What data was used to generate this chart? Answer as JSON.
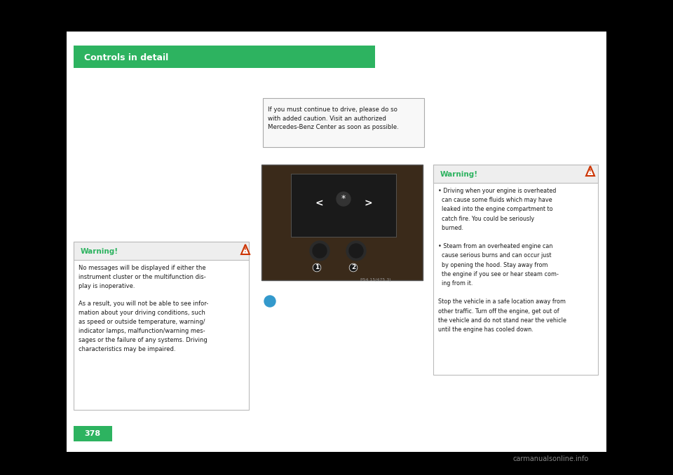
{
  "bg_color": "#000000",
  "page_color": "#ffffff",
  "header_color": "#2db360",
  "header_text": "Controls in detail",
  "header_text_color": "#ffffff",
  "header_font_size": 9,
  "page_number": "378",
  "page_number_bg": "#2db360",
  "page_number_color": "#ffffff",
  "warning_title_color": "#2db360",
  "warning_bg": "#ffffff",
  "warning_border_color": "#cccccc",
  "text_color": "#1a1a1a",
  "small_text_color": "#333333",
  "watermark_color": "#888888",
  "watermark_text": "carmanualsonline.info",
  "info_box_text": "If you must continue to drive, please do so\nwith added caution. Visit an authorized\nMercedes-Benz Center as soon as possible.",
  "warning1_title": "Warning!",
  "warning1_body": "No messages will be displayed if either the\ninstrument cluster or the multifunction dis-\nplay is inoperative.\n\nAs a result, you will not be able to see infor-\nmation about your driving conditions, such\nas speed or outside temperature, warning/\nindicator lamps, malfunction/warning mes-\nsages or the failure of any systems. Driving\ncharacteristics may be impaired.",
  "warning2_title": "Warning!",
  "warning2_body": "• Driving when your engine is overheated\n  can cause some fluids which may have\n  leaked into the engine compartment to\n  catch fire. You could be seriously\n  burned.\n\n• Steam from an overheated engine can\n  cause serious burns and can occur just\n  by opening the hood. Stay away from\n  the engine if you see or hear steam com-\n  ing from it.\n\nStop the vehicle in a safe location away from\nother traffic. Turn off the engine, get out of\nthe vehicle and do not stand near the vehicle\nuntil the engine has cooled down."
}
